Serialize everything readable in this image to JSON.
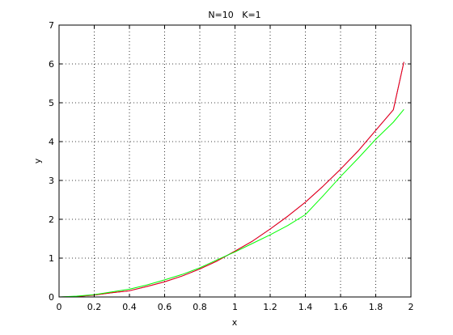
{
  "chart_data": {
    "type": "line",
    "title": "N=10   K=1",
    "xlabel": "x",
    "ylabel": "y",
    "xlim": [
      0,
      2
    ],
    "ylim": [
      0,
      7
    ],
    "xticks": [
      "0",
      "0.2",
      "0.4",
      "0.6",
      "0.8",
      "1",
      "1.2",
      "1.4",
      "1.6",
      "1.8",
      "2"
    ],
    "yticks": [
      "0",
      "1",
      "2",
      "3",
      "4",
      "5",
      "6",
      "7"
    ],
    "grid": true,
    "series": [
      {
        "color": "#0000ff",
        "x": [
          0.0,
          0.1,
          0.2,
          0.3,
          0.4,
          0.5,
          0.6,
          0.7,
          0.8,
          0.9,
          1.0,
          1.1,
          1.2,
          1.3,
          1.4,
          1.5,
          1.6,
          1.7,
          1.8,
          1.9,
          1.96
        ],
        "y": [
          0.0,
          0.01,
          0.05,
          0.11,
          0.16,
          0.27,
          0.39,
          0.54,
          0.72,
          0.93,
          1.18,
          1.44,
          1.75,
          2.08,
          2.44,
          2.85,
          3.29,
          3.76,
          4.29,
          4.82,
          6.05
        ]
      },
      {
        "color": "#ff0000",
        "x": [
          0.0,
          0.1,
          0.2,
          0.3,
          0.4,
          0.5,
          0.6,
          0.7,
          0.8,
          0.9,
          1.0,
          1.1,
          1.2,
          1.3,
          1.4,
          1.5,
          1.6,
          1.7,
          1.8,
          1.9,
          1.96
        ],
        "y": [
          0.0,
          0.01,
          0.05,
          0.11,
          0.16,
          0.27,
          0.39,
          0.54,
          0.72,
          0.93,
          1.18,
          1.44,
          1.75,
          2.08,
          2.44,
          2.85,
          3.29,
          3.76,
          4.29,
          4.82,
          6.05
        ]
      },
      {
        "color": "#00ff00",
        "x": [
          0.0,
          0.1,
          0.2,
          0.3,
          0.4,
          0.5,
          0.6,
          0.7,
          0.8,
          0.9,
          1.0,
          1.1,
          1.2,
          1.3,
          1.4,
          1.5,
          1.6,
          1.7,
          1.8,
          1.9,
          1.96
        ],
        "y": [
          0.0,
          0.02,
          0.06,
          0.13,
          0.2,
          0.31,
          0.44,
          0.58,
          0.75,
          0.96,
          1.16,
          1.38,
          1.6,
          1.84,
          2.12,
          2.6,
          3.1,
          3.57,
          4.06,
          4.5,
          4.83
        ]
      }
    ]
  }
}
